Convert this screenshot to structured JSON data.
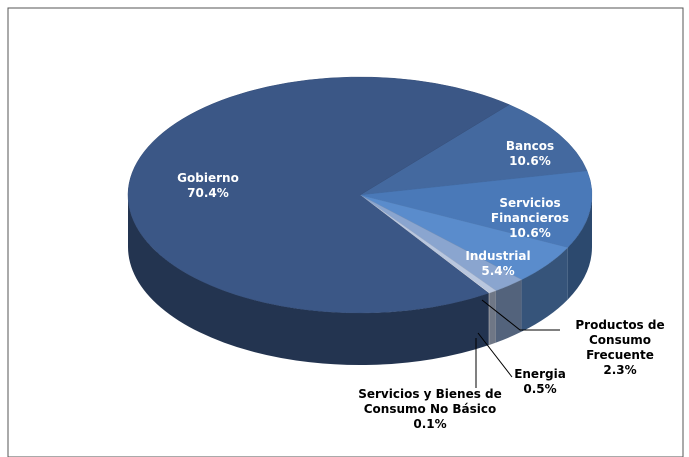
{
  "chart_data": {
    "type": "pie3d",
    "categories": [
      "Bancos",
      "Servicios Financieros",
      "Industrial",
      "Productos de Consumo Frecuente",
      "Energia",
      "Servicios y Bienes de Consumo No Básico",
      "Gobierno"
    ],
    "values": [
      10.6,
      10.6,
      5.4,
      2.3,
      0.5,
      0.1,
      70.4
    ],
    "value_labels": [
      "10.6%",
      "10.6%",
      "5.4%",
      "2.3%",
      "0.5%",
      "0.1%",
      "70.4%"
    ],
    "colors": [
      "#44699f",
      "#4a79b8",
      "#5a8ccc",
      "#8aa5cf",
      "#b9c7df",
      "#d4dceb",
      "#3b5786"
    ]
  }
}
